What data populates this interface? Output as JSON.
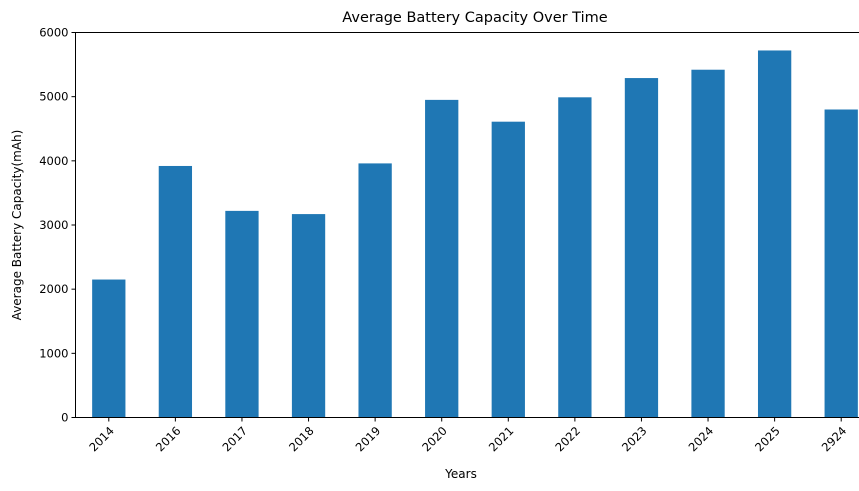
{
  "chart_data": {
    "type": "bar",
    "title": "Average Battery Capacity Over Time",
    "xlabel": "Years",
    "ylabel": "Average Battery Capacity(mAh)",
    "categories": [
      "2014",
      "2016",
      "2017",
      "2018",
      "2019",
      "2020",
      "2021",
      "2022",
      "2023",
      "2024",
      "2025",
      "2924"
    ],
    "values": [
      2150,
      3920,
      3220,
      3170,
      3960,
      4950,
      4610,
      4990,
      5290,
      5420,
      5720,
      4800
    ],
    "ylim": [
      0,
      6000
    ],
    "yticks": [
      0,
      1000,
      2000,
      3000,
      4000,
      5000,
      6000
    ],
    "grid": false,
    "bar_color": "#1f77b4",
    "xtick_rotation": 45
  }
}
